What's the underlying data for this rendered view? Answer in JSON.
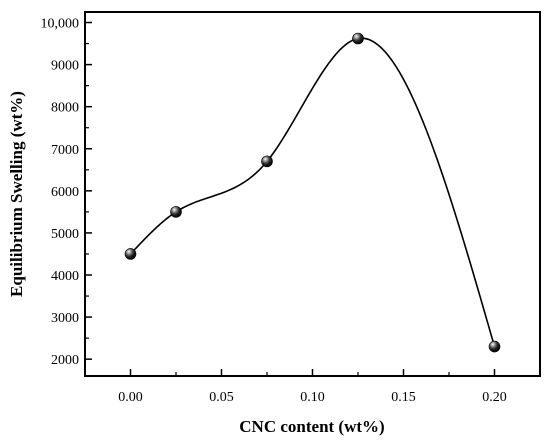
{
  "chart_data": {
    "type": "scatter",
    "title": "",
    "xlabel": "CNC content (wt%)",
    "ylabel": "Equilibrium Swelling (wt%)",
    "xlim": [
      -0.025,
      0.225
    ],
    "ylim": [
      1600,
      10250
    ],
    "x_ticks": [
      0.0,
      0.05,
      0.1,
      0.15,
      0.2
    ],
    "x_tick_labels": [
      "0.00",
      "0.05",
      "0.10",
      "0.15",
      "0.20"
    ],
    "y_ticks": [
      2000,
      3000,
      4000,
      5000,
      6000,
      7000,
      8000,
      9000,
      10000
    ],
    "y_tick_labels": [
      "2000",
      "3000",
      "4000",
      "5000",
      "6000",
      "7000",
      "8000",
      "9000",
      "10,000"
    ],
    "series": [
      {
        "x": [
          0.0,
          0.025,
          0.075,
          0.125,
          0.2
        ],
        "y": [
          4500,
          5500,
          6700,
          9620,
          2300
        ],
        "marker": "sphere",
        "line": "smooth-spline",
        "color": "#000000"
      }
    ],
    "grid": false,
    "legend": "none"
  }
}
